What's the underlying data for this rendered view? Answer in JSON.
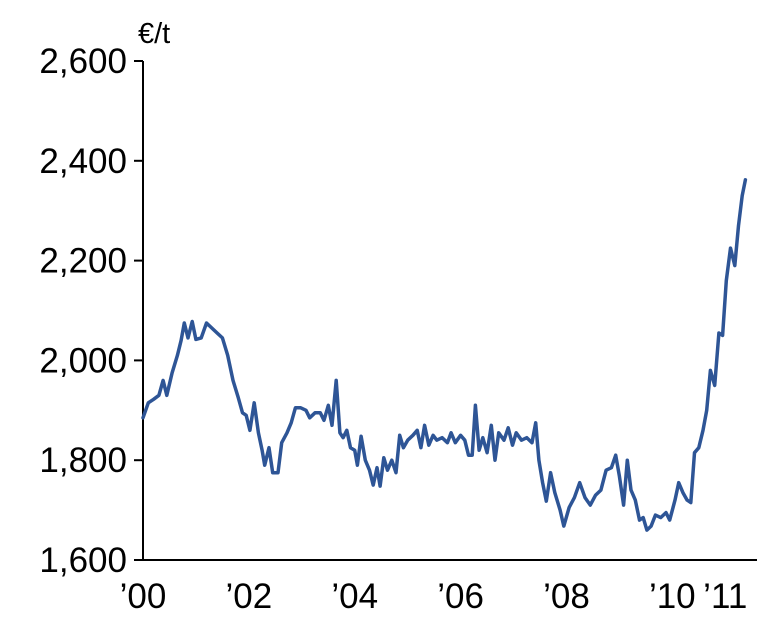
{
  "chart_data": {
    "type": "line",
    "title": "",
    "xlabel": "",
    "ylabel": "€/t",
    "xlim": [
      2000.0,
      2011.6
    ],
    "ylim": [
      1600,
      2600
    ],
    "yticks": [
      1600,
      1800,
      2000,
      2200,
      2400,
      2600
    ],
    "ytick_labels": [
      "1,600",
      "1,800",
      "2,000",
      "2,200",
      "2,400",
      "2,600"
    ],
    "xticks": [
      {
        "value": 2000,
        "label": "’00"
      },
      {
        "value": 2002,
        "label": "’02"
      },
      {
        "value": 2004,
        "label": "’04"
      },
      {
        "value": 2006,
        "label": "’06"
      },
      {
        "value": 2008,
        "label": "’08"
      },
      {
        "value": 2010,
        "label": "’10"
      },
      {
        "value": 2011,
        "label": "’11"
      }
    ],
    "grid": false,
    "legend": "none",
    "series": [
      {
        "color": "#2e5596",
        "points": [
          [
            2000.0,
            1885
          ],
          [
            2000.1,
            1915
          ],
          [
            2000.2,
            1922
          ],
          [
            2000.3,
            1930
          ],
          [
            2000.38,
            1960
          ],
          [
            2000.45,
            1930
          ],
          [
            2000.55,
            1975
          ],
          [
            2000.65,
            2010
          ],
          [
            2000.72,
            2040
          ],
          [
            2000.78,
            2075
          ],
          [
            2000.85,
            2045
          ],
          [
            2000.93,
            2078
          ],
          [
            2001.0,
            2042
          ],
          [
            2001.1,
            2045
          ],
          [
            2001.2,
            2075
          ],
          [
            2001.3,
            2065
          ],
          [
            2001.4,
            2055
          ],
          [
            2001.5,
            2045
          ],
          [
            2001.6,
            2010
          ],
          [
            2001.7,
            1960
          ],
          [
            2001.8,
            1925
          ],
          [
            2001.88,
            1895
          ],
          [
            2001.95,
            1890
          ],
          [
            2002.02,
            1860
          ],
          [
            2002.1,
            1915
          ],
          [
            2002.18,
            1855
          ],
          [
            2002.25,
            1820
          ],
          [
            2002.3,
            1790
          ],
          [
            2002.38,
            1825
          ],
          [
            2002.45,
            1775
          ],
          [
            2002.55,
            1775
          ],
          [
            2002.62,
            1835
          ],
          [
            2002.72,
            1855
          ],
          [
            2002.8,
            1875
          ],
          [
            2002.88,
            1905
          ],
          [
            2002.98,
            1905
          ],
          [
            2003.08,
            1900
          ],
          [
            2003.15,
            1885
          ],
          [
            2003.25,
            1895
          ],
          [
            2003.35,
            1895
          ],
          [
            2003.42,
            1880
          ],
          [
            2003.5,
            1910
          ],
          [
            2003.57,
            1870
          ],
          [
            2003.65,
            1960
          ],
          [
            2003.72,
            1855
          ],
          [
            2003.78,
            1845
          ],
          [
            2003.85,
            1860
          ],
          [
            2003.92,
            1825
          ],
          [
            2004.0,
            1820
          ],
          [
            2004.05,
            1790
          ],
          [
            2004.12,
            1848
          ],
          [
            2004.2,
            1800
          ],
          [
            2004.28,
            1780
          ],
          [
            2004.35,
            1750
          ],
          [
            2004.42,
            1785
          ],
          [
            2004.48,
            1748
          ],
          [
            2004.55,
            1805
          ],
          [
            2004.62,
            1780
          ],
          [
            2004.7,
            1800
          ],
          [
            2004.78,
            1775
          ],
          [
            2004.85,
            1850
          ],
          [
            2004.92,
            1825
          ],
          [
            2005.0,
            1840
          ],
          [
            2005.1,
            1850
          ],
          [
            2005.18,
            1860
          ],
          [
            2005.25,
            1825
          ],
          [
            2005.32,
            1870
          ],
          [
            2005.4,
            1830
          ],
          [
            2005.48,
            1850
          ],
          [
            2005.55,
            1840
          ],
          [
            2005.65,
            1845
          ],
          [
            2005.75,
            1835
          ],
          [
            2005.82,
            1855
          ],
          [
            2005.9,
            1835
          ],
          [
            2006.0,
            1850
          ],
          [
            2006.08,
            1840
          ],
          [
            2006.15,
            1810
          ],
          [
            2006.22,
            1810
          ],
          [
            2006.28,
            1910
          ],
          [
            2006.35,
            1820
          ],
          [
            2006.42,
            1845
          ],
          [
            2006.5,
            1815
          ],
          [
            2006.58,
            1870
          ],
          [
            2006.65,
            1800
          ],
          [
            2006.72,
            1855
          ],
          [
            2006.82,
            1840
          ],
          [
            2006.9,
            1865
          ],
          [
            2006.98,
            1830
          ],
          [
            2007.05,
            1855
          ],
          [
            2007.15,
            1840
          ],
          [
            2007.25,
            1845
          ],
          [
            2007.35,
            1835
          ],
          [
            2007.42,
            1875
          ],
          [
            2007.48,
            1800
          ],
          [
            2007.55,
            1755
          ],
          [
            2007.62,
            1718
          ],
          [
            2007.7,
            1775
          ],
          [
            2007.78,
            1735
          ],
          [
            2007.88,
            1700
          ],
          [
            2007.95,
            1668
          ],
          [
            2008.05,
            1705
          ],
          [
            2008.15,
            1725
          ],
          [
            2008.25,
            1755
          ],
          [
            2008.35,
            1725
          ],
          [
            2008.45,
            1710
          ],
          [
            2008.55,
            1730
          ],
          [
            2008.65,
            1740
          ],
          [
            2008.75,
            1780
          ],
          [
            2008.85,
            1785
          ],
          [
            2008.93,
            1810
          ],
          [
            2009.0,
            1768
          ],
          [
            2009.08,
            1710
          ],
          [
            2009.15,
            1800
          ],
          [
            2009.22,
            1740
          ],
          [
            2009.3,
            1720
          ],
          [
            2009.38,
            1680
          ],
          [
            2009.45,
            1685
          ],
          [
            2009.52,
            1660
          ],
          [
            2009.6,
            1668
          ],
          [
            2009.68,
            1690
          ],
          [
            2009.78,
            1685
          ],
          [
            2009.88,
            1695
          ],
          [
            2009.95,
            1680
          ],
          [
            2010.05,
            1720
          ],
          [
            2010.12,
            1755
          ],
          [
            2010.2,
            1735
          ],
          [
            2010.28,
            1720
          ],
          [
            2010.35,
            1715
          ],
          [
            2010.42,
            1815
          ],
          [
            2010.5,
            1825
          ],
          [
            2010.58,
            1860
          ],
          [
            2010.65,
            1900
          ],
          [
            2010.72,
            1980
          ],
          [
            2010.8,
            1950
          ],
          [
            2010.88,
            2055
          ],
          [
            2010.95,
            2050
          ],
          [
            2011.02,
            2160
          ],
          [
            2011.1,
            2225
          ],
          [
            2011.18,
            2190
          ],
          [
            2011.25,
            2270
          ],
          [
            2011.32,
            2330
          ],
          [
            2011.38,
            2362
          ]
        ]
      }
    ]
  }
}
